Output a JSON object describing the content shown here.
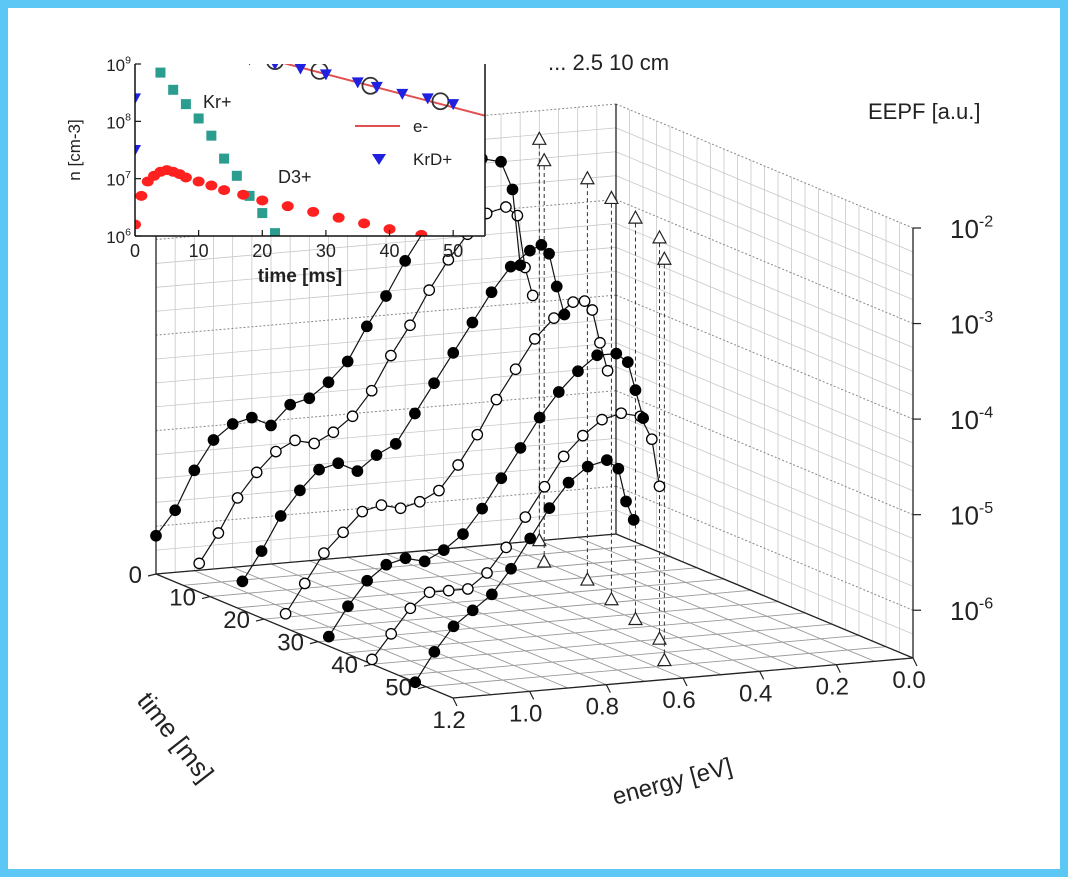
{
  "chart_data": {
    "type": "scatter",
    "title": "",
    "header_fragment": "... 2.5 10 cm",
    "main": {
      "xlabel": "energy [eV]",
      "ylabel": "time [ms]",
      "zlabel": "EEPF [a.u.]",
      "energy_ticks": [
        "0.0",
        "0.2",
        "0.4",
        "0.6",
        "0.8",
        "1.0",
        "1.2"
      ],
      "time_ticks": [
        "0",
        "10",
        "20",
        "30",
        "40",
        "50"
      ],
      "eepf_ticks": [
        {
          "base": "10",
          "exp": "-2"
        },
        {
          "base": "10",
          "exp": "-3"
        },
        {
          "base": "10",
          "exp": "-4"
        },
        {
          "base": "10",
          "exp": "-5"
        },
        {
          "base": "10",
          "exp": "-6"
        }
      ],
      "energy_range": [
        0,
        1.2
      ],
      "time_range": [
        0,
        55
      ],
      "eepf_log_range": [
        -6.5,
        -2
      ],
      "grid": true,
      "series": [
        {
          "time": 0,
          "marker": "filled",
          "points": [
            [
              1.2,
              -6.1
            ],
            [
              1.15,
              -5.85
            ],
            [
              1.1,
              -5.45
            ],
            [
              1.05,
              -5.15
            ],
            [
              1.0,
              -5.0
            ],
            [
              0.95,
              -4.95
            ],
            [
              0.9,
              -5.05
            ],
            [
              0.85,
              -4.85
            ],
            [
              0.8,
              -4.8
            ],
            [
              0.75,
              -4.65
            ],
            [
              0.7,
              -4.45
            ],
            [
              0.65,
              -4.1
            ],
            [
              0.6,
              -3.8
            ],
            [
              0.55,
              -3.45
            ],
            [
              0.5,
              -3.15
            ],
            [
              0.45,
              -2.85
            ],
            [
              0.4,
              -2.6
            ],
            [
              0.35,
              -2.45
            ],
            [
              0.3,
              -2.5
            ],
            [
              0.27,
              -2.8
            ],
            [
              0.25,
              -3.6
            ]
          ]
        },
        {
          "time": 8,
          "marker": "open",
          "points": [
            [
              1.2,
              -6.2
            ],
            [
              1.15,
              -5.9
            ],
            [
              1.1,
              -5.55
            ],
            [
              1.05,
              -5.3
            ],
            [
              1.0,
              -5.1
            ],
            [
              0.95,
              -5.0
            ],
            [
              0.9,
              -5.05
            ],
            [
              0.85,
              -4.95
            ],
            [
              0.8,
              -4.8
            ],
            [
              0.75,
              -4.55
            ],
            [
              0.7,
              -4.2
            ],
            [
              0.65,
              -3.9
            ],
            [
              0.6,
              -3.55
            ],
            [
              0.55,
              -3.25
            ],
            [
              0.5,
              -3.0
            ],
            [
              0.45,
              -2.8
            ],
            [
              0.4,
              -2.75
            ],
            [
              0.37,
              -2.85
            ],
            [
              0.35,
              -3.4
            ],
            [
              0.33,
              -3.7
            ]
          ]
        },
        {
          "time": 16,
          "marker": "filled",
          "points": [
            [
              1.2,
              -6.2
            ],
            [
              1.15,
              -5.9
            ],
            [
              1.1,
              -5.55
            ],
            [
              1.05,
              -5.3
            ],
            [
              1.0,
              -5.1
            ],
            [
              0.95,
              -5.05
            ],
            [
              0.9,
              -5.15
            ],
            [
              0.85,
              -5.0
            ],
            [
              0.8,
              -4.9
            ],
            [
              0.75,
              -4.6
            ],
            [
              0.7,
              -4.3
            ],
            [
              0.65,
              -4.0
            ],
            [
              0.6,
              -3.7
            ],
            [
              0.55,
              -3.4
            ],
            [
              0.5,
              -3.15
            ],
            [
              0.45,
              -3.0
            ],
            [
              0.42,
              -2.95
            ],
            [
              0.4,
              -3.05
            ],
            [
              0.38,
              -3.4
            ],
            [
              0.36,
              -3.7
            ]
          ]
        },
        {
          "time": 24,
          "marker": "open",
          "points": [
            [
              1.2,
              -6.35
            ],
            [
              1.15,
              -6.05
            ],
            [
              1.1,
              -5.75
            ],
            [
              1.05,
              -5.55
            ],
            [
              1.0,
              -5.35
            ],
            [
              0.95,
              -5.3
            ],
            [
              0.9,
              -5.35
            ],
            [
              0.85,
              -5.3
            ],
            [
              0.8,
              -5.2
            ],
            [
              0.75,
              -4.95
            ],
            [
              0.7,
              -4.65
            ],
            [
              0.65,
              -4.3
            ],
            [
              0.6,
              -4.0
            ],
            [
              0.55,
              -3.7
            ],
            [
              0.5,
              -3.5
            ],
            [
              0.45,
              -3.35
            ],
            [
              0.42,
              -3.35
            ],
            [
              0.4,
              -3.45
            ],
            [
              0.38,
              -3.8
            ],
            [
              0.36,
              -4.1
            ]
          ]
        },
        {
          "time": 32,
          "marker": "filled",
          "points": [
            [
              1.2,
              -6.4
            ],
            [
              1.15,
              -6.1
            ],
            [
              1.1,
              -5.85
            ],
            [
              1.05,
              -5.7
            ],
            [
              1.0,
              -5.65
            ],
            [
              0.95,
              -5.7
            ],
            [
              0.9,
              -5.6
            ],
            [
              0.85,
              -5.45
            ],
            [
              0.8,
              -5.2
            ],
            [
              0.75,
              -4.9
            ],
            [
              0.7,
              -4.6
            ],
            [
              0.65,
              -4.3
            ],
            [
              0.6,
              -4.05
            ],
            [
              0.55,
              -3.85
            ],
            [
              0.5,
              -3.7
            ],
            [
              0.45,
              -3.7
            ],
            [
              0.42,
              -3.8
            ],
            [
              0.4,
              -4.1
            ],
            [
              0.38,
              -4.4
            ]
          ]
        },
        {
          "time": 40,
          "marker": "open",
          "points": [
            [
              1.2,
              -6.45
            ],
            [
              1.15,
              -6.2
            ],
            [
              1.1,
              -5.95
            ],
            [
              1.05,
              -5.8
            ],
            [
              1.0,
              -5.8
            ],
            [
              0.95,
              -5.8
            ],
            [
              0.9,
              -5.65
            ],
            [
              0.85,
              -5.4
            ],
            [
              0.8,
              -5.1
            ],
            [
              0.75,
              -4.8
            ],
            [
              0.7,
              -4.5
            ],
            [
              0.65,
              -4.3
            ],
            [
              0.6,
              -4.15
            ],
            [
              0.55,
              -4.1
            ],
            [
              0.5,
              -4.15
            ],
            [
              0.47,
              -4.4
            ],
            [
              0.45,
              -4.9
            ]
          ]
        },
        {
          "time": 48,
          "marker": "filled",
          "points": [
            [
              1.2,
              -6.5
            ],
            [
              1.15,
              -6.2
            ],
            [
              1.1,
              -5.95
            ],
            [
              1.05,
              -5.8
            ],
            [
              1.0,
              -5.65
            ],
            [
              0.95,
              -5.4
            ],
            [
              0.9,
              -5.1
            ],
            [
              0.85,
              -4.8
            ],
            [
              0.8,
              -4.55
            ],
            [
              0.75,
              -4.4
            ],
            [
              0.7,
              -4.35
            ],
            [
              0.67,
              -4.45
            ],
            [
              0.65,
              -4.8
            ],
            [
              0.63,
              -5.0
            ]
          ]
        }
      ],
      "maxima_markers": [
        {
          "time": 0,
          "energy": 0.2
        },
        {
          "time": 8,
          "energy": 0.3
        },
        {
          "time": 16,
          "energy": 0.3
        },
        {
          "time": 24,
          "energy": 0.35
        },
        {
          "time": 32,
          "energy": 0.4
        },
        {
          "time": 40,
          "energy": 0.45
        },
        {
          "time": 48,
          "energy": 0.55
        }
      ]
    },
    "inset": {
      "xlabel": "time [ms]",
      "ylabel": "n [cm-3]",
      "xlim": [
        0,
        55
      ],
      "ylim_log": [
        6,
        9
      ],
      "x_ticks": [
        "0",
        "10",
        "20",
        "30",
        "40",
        "50"
      ],
      "y_ticks": [
        {
          "base": "10",
          "exp": "6"
        },
        {
          "base": "10",
          "exp": "7"
        },
        {
          "base": "10",
          "exp": "8"
        },
        {
          "base": "10",
          "exp": "9"
        }
      ],
      "annotations": [
        "Kr+",
        "D3+"
      ],
      "legend": [
        "e-",
        "KrD+"
      ],
      "series": [
        {
          "name": "Kr+",
          "marker": "square",
          "color": "#2a9d8f",
          "points": [
            [
              2,
              9.1
            ],
            [
              4,
              8.85
            ],
            [
              6,
              8.55
            ],
            [
              8,
              8.3
            ],
            [
              10,
              8.05
            ],
            [
              12,
              7.75
            ],
            [
              14,
              7.35
            ],
            [
              16,
              7.05
            ],
            [
              18,
              6.7
            ],
            [
              20,
              6.4
            ],
            [
              22,
              6.05
            ]
          ]
        },
        {
          "name": "D3+",
          "marker": "circle",
          "color": "#ff2020",
          "points": [
            [
              0,
              6.2
            ],
            [
              1,
              6.7
            ],
            [
              2,
              6.95
            ],
            [
              3,
              7.05
            ],
            [
              4,
              7.12
            ],
            [
              5,
              7.15
            ],
            [
              6,
              7.12
            ],
            [
              7,
              7.08
            ],
            [
              8,
              7.02
            ],
            [
              10,
              6.95
            ],
            [
              12,
              6.88
            ],
            [
              14,
              6.8
            ],
            [
              17,
              6.72
            ],
            [
              20,
              6.62
            ],
            [
              24,
              6.52
            ],
            [
              28,
              6.42
            ],
            [
              32,
              6.32
            ],
            [
              36,
              6.22
            ],
            [
              40,
              6.12
            ],
            [
              45,
              6.02
            ],
            [
              50,
              5.92
            ]
          ]
        },
        {
          "name": "e-",
          "marker": "line",
          "color": "#e05050",
          "points": [
            [
              17,
              9.2
            ],
            [
              55,
              8.1
            ]
          ]
        },
        {
          "name": "e-",
          "marker": "open-circle",
          "color": "#333333",
          "points": [
            [
              22,
              9.05
            ],
            [
              29,
              8.88
            ],
            [
              37,
              8.62
            ],
            [
              48,
              8.35
            ]
          ]
        },
        {
          "name": "KrD+",
          "marker": "triangle-down",
          "color": "#2020e0",
          "points": [
            [
              0,
              9.6
            ],
            [
              0,
              8.4
            ],
            [
              0,
              7.5
            ],
            [
              18,
              9.08
            ],
            [
              22,
              9.0
            ],
            [
              26,
              8.92
            ],
            [
              30,
              8.82
            ],
            [
              35,
              8.68
            ],
            [
              38,
              8.6
            ],
            [
              42,
              8.48
            ],
            [
              46,
              8.4
            ],
            [
              50,
              8.3
            ]
          ]
        }
      ]
    }
  }
}
